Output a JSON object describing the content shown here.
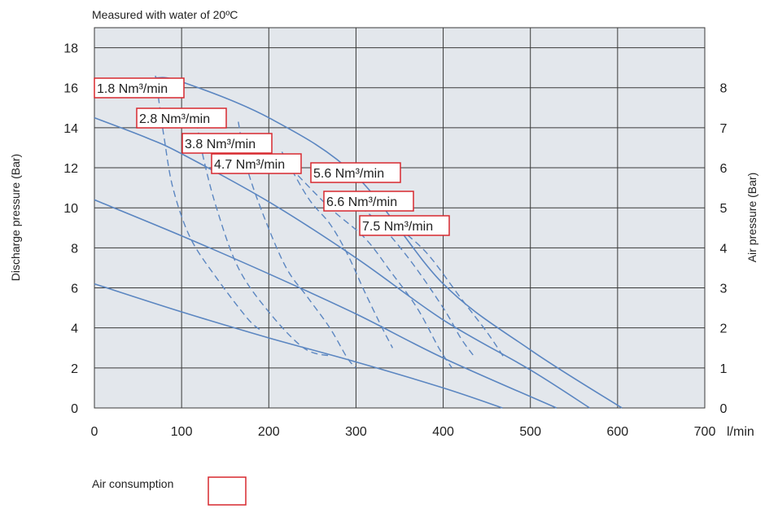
{
  "note": "Measured with water of 20ºC",
  "legend_label": "Air consumption",
  "colors": {
    "plot_bg": "#e3e7ec",
    "grid": "#3a3a3a",
    "curve": "#5b86c1",
    "box": "#d7282f"
  },
  "chart_data": {
    "type": "line",
    "xlabel": "l/min",
    "ylabel": "Discharge pressure (Bar)",
    "ylabel_right": "Air pressure (Bar)",
    "xlim": [
      0,
      700
    ],
    "ylim": [
      0,
      19
    ],
    "ylim_right": [
      0,
      9.5
    ],
    "x_ticks": [
      0,
      100,
      200,
      300,
      400,
      500,
      600,
      700
    ],
    "y_ticks": [
      0,
      2,
      4,
      6,
      8,
      10,
      12,
      14,
      16,
      18
    ],
    "y_ticks_right": [
      0,
      1,
      2,
      3,
      4,
      5,
      6,
      7,
      8
    ],
    "grid": true,
    "air_pressure_curves": [
      {
        "air_pressure": 8,
        "points": [
          [
            70,
            16.5
          ],
          [
            100,
            16.3
          ],
          [
            200,
            14.5
          ],
          [
            300,
            11.6
          ],
          [
            400,
            6.2
          ],
          [
            500,
            2.9
          ],
          [
            605,
            0
          ]
        ]
      },
      {
        "air_pressure": 7,
        "points": [
          [
            0,
            14.5
          ],
          [
            60,
            13.5
          ],
          [
            100,
            12.7
          ],
          [
            200,
            10.3
          ],
          [
            300,
            7.5
          ],
          [
            400,
            4.4
          ],
          [
            500,
            1.9
          ],
          [
            568,
            0
          ]
        ]
      },
      {
        "air_pressure": 5,
        "points": [
          [
            0,
            10.4
          ],
          [
            100,
            8.6
          ],
          [
            200,
            6.7
          ],
          [
            300,
            4.7
          ],
          [
            400,
            2.5
          ],
          [
            530,
            0
          ]
        ]
      },
      {
        "air_pressure": 3,
        "points": [
          [
            0,
            6.2
          ],
          [
            100,
            4.8
          ],
          [
            200,
            3.5
          ],
          [
            300,
            2.3
          ],
          [
            400,
            1.0
          ],
          [
            468,
            0
          ]
        ]
      }
    ],
    "air_consumption_curves": [
      {
        "name": "1.8 Nm³/min",
        "points": [
          [
            70,
            16.6
          ],
          [
            75,
            15.0
          ],
          [
            80,
            13.5
          ],
          [
            90,
            11.0
          ],
          [
            110,
            8.5
          ],
          [
            140,
            6.5
          ],
          [
            175,
            4.5
          ],
          [
            190,
            3.9
          ]
        ]
      },
      {
        "name": "2.8 Nm³/min",
        "points": [
          [
            115,
            14.8
          ],
          [
            125,
            12.5
          ],
          [
            140,
            10.0
          ],
          [
            165,
            7.0
          ],
          [
            200,
            4.8
          ],
          [
            240,
            3.0
          ],
          [
            270,
            2.6
          ]
        ]
      },
      {
        "name": "3.8 Nm³/min",
        "points": [
          [
            165,
            14.3
          ],
          [
            175,
            12.0
          ],
          [
            195,
            9.5
          ],
          [
            220,
            7.0
          ],
          [
            245,
            5.5
          ],
          [
            270,
            4.0
          ],
          [
            290,
            2.5
          ],
          [
            300,
            2.0
          ]
        ]
      },
      {
        "name": "4.7 Nm³/min",
        "points": [
          [
            215,
            12.8
          ],
          [
            245,
            10.5
          ],
          [
            270,
            9.2
          ],
          [
            290,
            7.7
          ],
          [
            310,
            5.8
          ],
          [
            330,
            4.0
          ],
          [
            342,
            3.0
          ]
        ]
      },
      {
        "name": "5.6 Nm³/min",
        "points": [
          [
            225,
            12.0
          ],
          [
            270,
            10.0
          ],
          [
            310,
            8.5
          ],
          [
            340,
            6.8
          ],
          [
            370,
            5.0
          ],
          [
            395,
            3.0
          ],
          [
            410,
            2.0
          ]
        ]
      },
      {
        "name": "6.6 Nm³/min",
        "points": [
          [
            285,
            10.6
          ],
          [
            320,
            9.5
          ],
          [
            360,
            7.5
          ],
          [
            400,
            5.0
          ],
          [
            420,
            3.5
          ],
          [
            435,
            2.6
          ]
        ]
      },
      {
        "name": "7.5 Nm³/min",
        "points": [
          [
            340,
            9.3
          ],
          [
            380,
            7.8
          ],
          [
            420,
            5.5
          ],
          [
            450,
            3.8
          ],
          [
            470,
            2.5
          ]
        ]
      }
    ]
  }
}
